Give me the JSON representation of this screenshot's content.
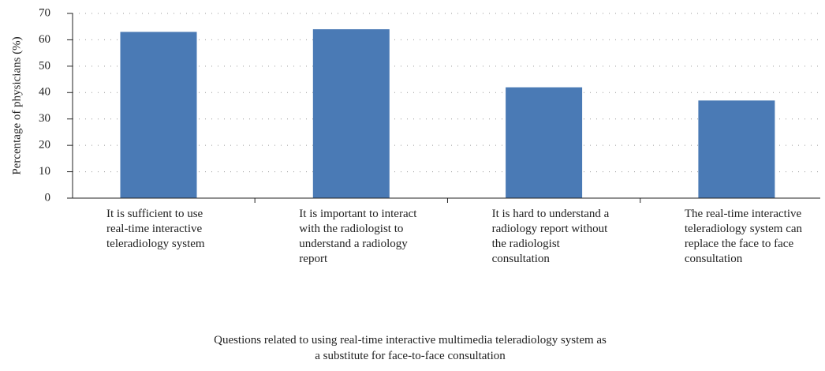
{
  "chart_data": {
    "type": "bar",
    "y_label": "Percentage of physicians (%)",
    "x_label": "Questions related to using real-time interactive multimedia teleradiology system as a substitute for face-to-face consultation",
    "categories": [
      "It is sufficient to use real-time interactive teleradiology system",
      "It is important to interact with the radiologist to understand a radiology report",
      "It is hard to understand a radiology report without the radiologist consultation",
      "The real-time interactive teleradiology system can replace the face to face consultation"
    ],
    "values": [
      63,
      64,
      42,
      37
    ],
    "color": "#4a7ab5",
    "ylim": [
      0,
      70
    ],
    "yticks": [
      0,
      10,
      20,
      30,
      40,
      50,
      60,
      70
    ],
    "grid": true
  }
}
